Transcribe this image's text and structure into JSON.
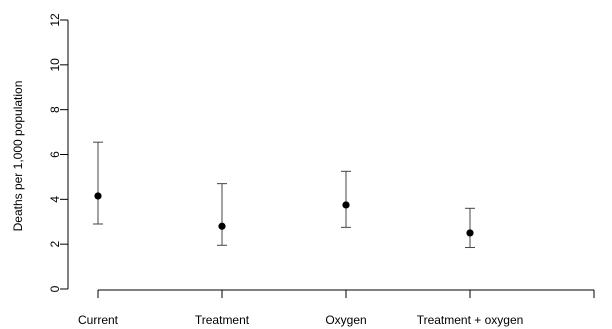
{
  "chart_data": {
    "type": "scatter",
    "ylabel": "Deaths per 1,000 population",
    "ylim": [
      0,
      12
    ],
    "yticks": [
      0,
      2,
      4,
      6,
      8,
      10,
      12
    ],
    "grid": false,
    "colors": {
      "marker": "#000000",
      "axis": "#000000",
      "errorbar": "#444444"
    },
    "points": [
      {
        "label": "Current",
        "value": 4.15,
        "lower": 2.9,
        "upper": 6.55
      },
      {
        "label": "Treatment",
        "value": 2.8,
        "lower": 1.95,
        "upper": 4.7
      },
      {
        "label": "Oxygen",
        "value": 3.75,
        "lower": 2.75,
        "upper": 5.25
      },
      {
        "label": "Treatment + oxygen",
        "value": 2.5,
        "lower": 1.85,
        "upper": 3.6
      }
    ]
  }
}
